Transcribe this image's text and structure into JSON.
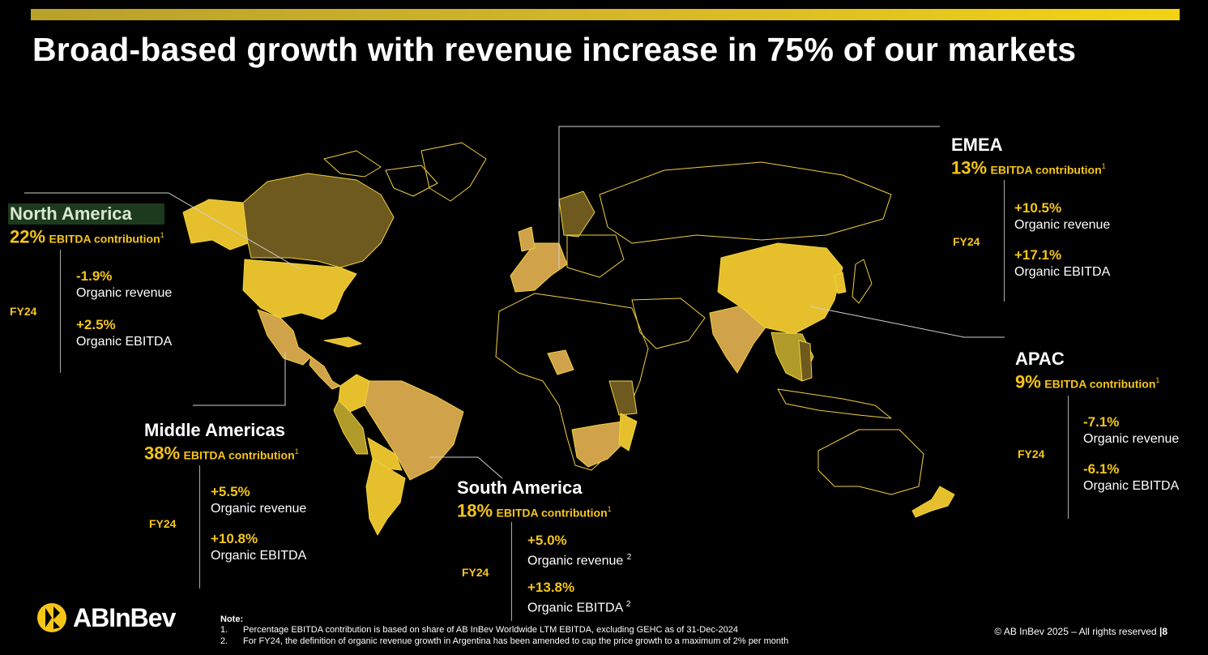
{
  "title": "Broad-based growth with revenue increase in 75% of our markets",
  "colors": {
    "accent": "#f5c518",
    "map_light": "#e6c02c",
    "map_mid": "#d0a24a",
    "map_dark": "#6e5a1e",
    "background": "#000000"
  },
  "regions": {
    "north_america": {
      "name": "North America",
      "contribution_pct": "22%",
      "contribution_label": "EBITDA contribution",
      "footnote": "1",
      "period": "FY24",
      "revenue_value": "-1.9%",
      "revenue_label": "Organic revenue",
      "ebitda_value": "+2.5%",
      "ebitda_label": "Organic EBITDA"
    },
    "middle_americas": {
      "name": "Middle Americas",
      "contribution_pct": "38%",
      "contribution_label": "EBITDA contribution",
      "footnote": "1",
      "period": "FY24",
      "revenue_value": "+5.5%",
      "revenue_label": "Organic revenue",
      "ebitda_value": "+10.8%",
      "ebitda_label": "Organic EBITDA"
    },
    "south_america": {
      "name": "South America",
      "contribution_pct": "18%",
      "contribution_label": "EBITDA contribution",
      "footnote": "1",
      "period": "FY24",
      "revenue_value": "+5.0%",
      "revenue_label": "Organic revenue",
      "revenue_footnote": "2",
      "ebitda_value": "+13.8%",
      "ebitda_label": "Organic EBITDA",
      "ebitda_footnote": "2"
    },
    "emea": {
      "name": "EMEA",
      "contribution_pct": "13%",
      "contribution_label": "EBITDA contribution",
      "footnote": "1",
      "period": "FY24",
      "revenue_value": "+10.5%",
      "revenue_label": "Organic revenue",
      "ebitda_value": "+17.1%",
      "ebitda_label": "Organic EBITDA"
    },
    "apac": {
      "name": "APAC",
      "contribution_pct": "9%",
      "contribution_label": "EBITDA contribution",
      "footnote": "1",
      "period": "FY24",
      "revenue_value": "-7.1%",
      "revenue_label": "Organic revenue",
      "ebitda_value": "-6.1%",
      "ebitda_label": "Organic EBITDA"
    }
  },
  "logo": {
    "text": "ABInBev",
    "icon": "abinbev-logo-icon"
  },
  "notes": {
    "title": "Note:",
    "items": [
      {
        "num": "1.",
        "text": "Percentage EBITDA contribution is based on share of AB InBev Worldwide LTM EBITDA, excluding GEHC as of 31-Dec-2024"
      },
      {
        "num": "2.",
        "text": "For FY24, the definition of organic revenue growth in Argentina has been amended to cap the price growth to a maximum of 2% per month"
      }
    ]
  },
  "footer": {
    "copyright": "© AB InBev 2025 – All rights reserved",
    "page": "8"
  }
}
